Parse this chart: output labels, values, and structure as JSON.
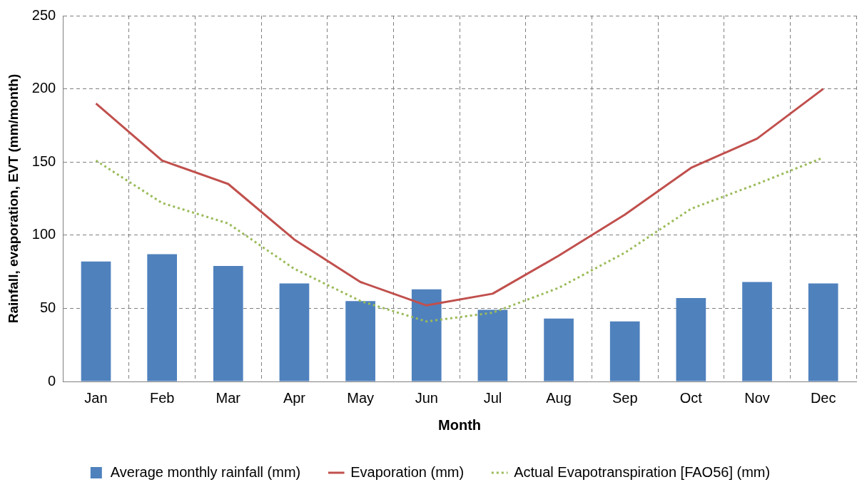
{
  "chart_data": {
    "type": "bar",
    "xlabel": "Month",
    "ylabel": "Rainfall, evaporation, EVT (mm/month)",
    "categories": [
      "Jan",
      "Feb",
      "Mar",
      "Apr",
      "May",
      "Jun",
      "Jul",
      "Aug",
      "Sep",
      "Oct",
      "Nov",
      "Dec"
    ],
    "series": [
      {
        "name": "Average monthly rainfall (mm)",
        "color": "#4f81bd",
        "values": [
          82,
          87,
          79,
          67,
          55,
          63,
          49,
          43,
          41,
          57,
          68,
          67
        ]
      },
      {
        "name": "Evaporation (mm)",
        "type": "line",
        "color": "#c0504d",
        "line_style": "solid",
        "values": [
          190,
          151,
          135,
          97,
          68,
          52,
          60,
          86,
          114,
          146,
          166,
          200
        ]
      },
      {
        "name": "Actual Evapotranspiration [FAO56] (mm)",
        "type": "line",
        "color": "#9bbb59",
        "line_style": "dotted",
        "values": [
          151,
          122,
          108,
          77,
          55,
          41,
          47,
          64,
          88,
          118,
          135,
          153
        ]
      }
    ],
    "ylim": [
      0,
      250
    ],
    "yticks": [
      0,
      50,
      100,
      150,
      200,
      250
    ],
    "grid": true,
    "legend": "bottom",
    "marker": "none"
  }
}
